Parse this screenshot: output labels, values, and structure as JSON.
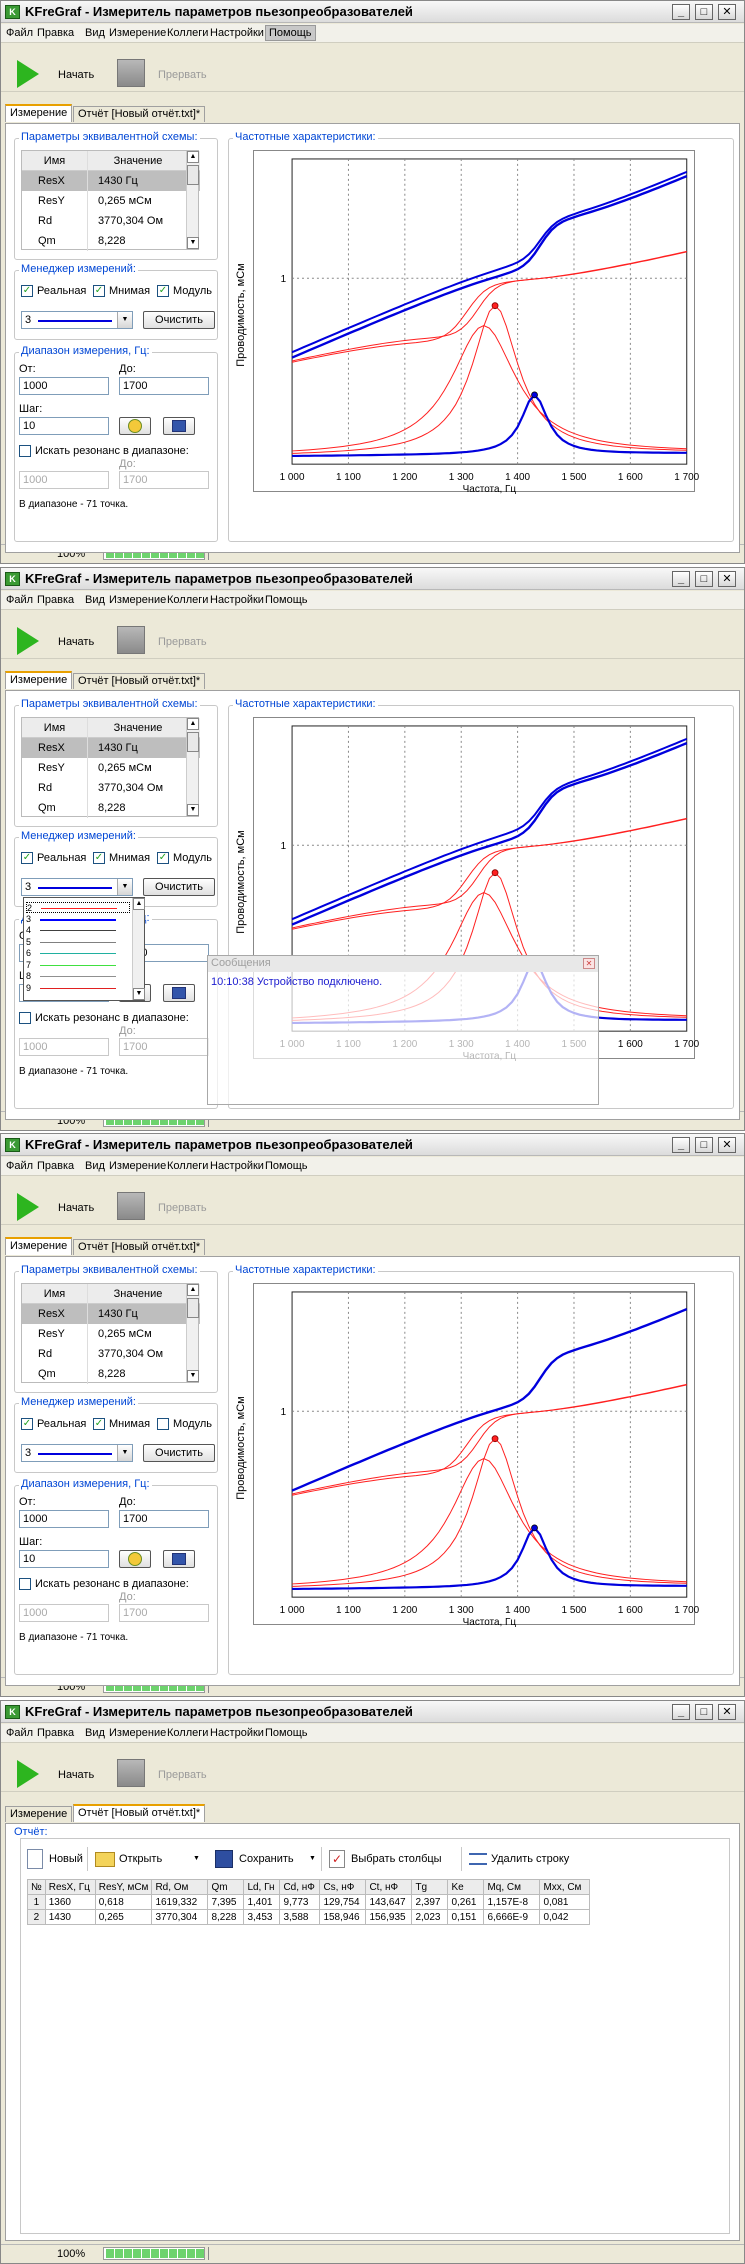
{
  "app": {
    "title": "KFreGraf - Измеритель параметров пьезопреобразователей",
    "icon_letter": "K",
    "window_controls": {
      "minimize": "_",
      "maximize": "□",
      "close": "✕"
    }
  },
  "menu": [
    "Файл",
    "Правка",
    "Вид",
    "Измерение",
    "Коллеги",
    "Настройки",
    "Помощь"
  ],
  "toolbar": {
    "start_label": "Начать",
    "break_label": "Прервать"
  },
  "tabs": {
    "measurement": "Измерение",
    "report": "Отчёт [Новый отчёт.txt]*"
  },
  "params": {
    "legend": "Параметры эквивалентной схемы:",
    "col_name": "Имя",
    "col_value": "Значение",
    "rows": [
      {
        "name": "ResX",
        "value": "1430 Гц"
      },
      {
        "name": "ResY",
        "value": "0,265 мСм"
      },
      {
        "name": "Rd",
        "value": "3770,304 Ом"
      },
      {
        "name": "Qm",
        "value": "8,228"
      }
    ]
  },
  "manager": {
    "legend": "Менеджер измерений:",
    "real_label": "Реальная",
    "imag_label": "Мнимая",
    "module_label": "Модуль",
    "selected_value": "3",
    "clear_label": "Очистить",
    "dropdown_items": [
      {
        "num": "2",
        "color": "#ff2020"
      },
      {
        "num": "3",
        "color": "#0000ff"
      },
      {
        "num": "4",
        "color": "#404040"
      },
      {
        "num": "5",
        "color": "#808080"
      },
      {
        "num": "6",
        "color": "#20b0a0"
      },
      {
        "num": "7",
        "color": "#40e040"
      },
      {
        "num": "8",
        "color": "#909090"
      },
      {
        "num": "9",
        "color": "#e02020"
      }
    ]
  },
  "range": {
    "legend": "Диапазон измерения, Гц:",
    "from_label": "От:",
    "to_label": "До:",
    "from_value": "1000",
    "to_value": "1700",
    "step_label": "Шаг:",
    "step_value": "10",
    "search_label": "Искать резонанс в диапазоне:",
    "search_from": "1000",
    "search_to": "1700",
    "points_text": "В диапазоне - 71 точка."
  },
  "plot": {
    "legend": "Частотные характеристики:",
    "ylabel": "Проводимость, мСм",
    "xlabel": "Частота, Гц",
    "y_tick": "1",
    "x_ticks": [
      "1 000",
      "1 100",
      "1 200",
      "1 300",
      "1 400",
      "1 500",
      "1 600",
      "1 700"
    ]
  },
  "messages": {
    "title": "Сообщения",
    "close": "✕",
    "text": "10:10:38 Устройство подключено."
  },
  "status": {
    "zoom": "100%"
  },
  "report": {
    "legend": "Отчёт:",
    "toolbar": {
      "new": "Новый",
      "open": "Открыть",
      "save": "Сохранить",
      "columns": "Выбрать столбцы",
      "delete_row": "Удалить строку"
    },
    "headers": [
      "№",
      "ResX, Гц",
      "ResY, мСм",
      "Rd, Ом",
      "Qm",
      "Ld, Гн",
      "Cd, нФ",
      "Cs, нФ",
      "Ct, нФ",
      "Tg",
      "Ke",
      "Mq, См",
      "Mxx, См"
    ],
    "rows": [
      [
        "1",
        "1360",
        "0,618",
        "1619,332",
        "7,395",
        "1,401",
        "9,773",
        "129,754",
        "143,647",
        "2,397",
        "0,261",
        "1,157E-8",
        "0,081"
      ],
      [
        "2",
        "1430",
        "0,265",
        "3770,304",
        "8,228",
        "3,453",
        "3,588",
        "158,946",
        "156,935",
        "2,023",
        "0,151",
        "6,666E-9",
        "0,042"
      ]
    ]
  },
  "colors": {
    "red_series": "#ff2020",
    "blue_series": "#0000dd",
    "accent": "#0046d5"
  }
}
